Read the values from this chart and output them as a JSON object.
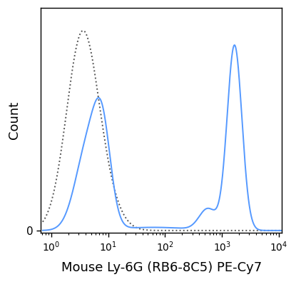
{
  "title": "",
  "xlabel": "Mouse Ly-6G (RB6-8C5) PE-Cy7",
  "ylabel": "Count",
  "background_color": "#ffffff",
  "solid_color": "#5599ff",
  "dashed_color": "#555555",
  "xlabel_fontsize": 13,
  "ylabel_fontsize": 13
}
